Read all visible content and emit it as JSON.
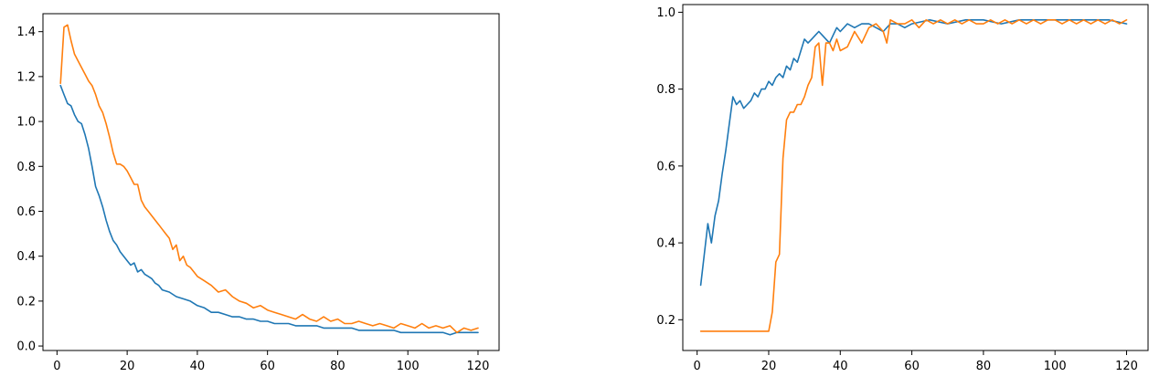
{
  "chart_data": [
    {
      "type": "line",
      "title": "",
      "xlabel": "",
      "ylabel": "",
      "xlim": [
        -4,
        126
      ],
      "ylim": [
        -0.02,
        1.48
      ],
      "xticks": [
        0,
        20,
        40,
        60,
        80,
        100,
        120
      ],
      "xtick_labels": [
        "0",
        "20",
        "40",
        "60",
        "80",
        "100",
        "120"
      ],
      "yticks": [
        0.0,
        0.2,
        0.4,
        0.6,
        0.8,
        1.0,
        1.2,
        1.4
      ],
      "ytick_labels": [
        "0.0",
        "0.2",
        "0.4",
        "0.6",
        "0.8",
        "1.0",
        "1.2",
        "1.4"
      ],
      "grid": false,
      "legend": "none",
      "series": [
        {
          "color": "#1f77b4",
          "x": [
            1,
            2,
            3,
            4,
            5,
            6,
            7,
            8,
            9,
            10,
            11,
            12,
            13,
            14,
            15,
            16,
            17,
            18,
            19,
            20,
            21,
            22,
            23,
            24,
            25,
            26,
            27,
            28,
            29,
            30,
            32,
            34,
            36,
            38,
            40,
            42,
            44,
            46,
            48,
            50,
            52,
            54,
            56,
            58,
            60,
            62,
            64,
            66,
            68,
            70,
            72,
            74,
            76,
            78,
            80,
            82,
            84,
            86,
            88,
            90,
            92,
            94,
            96,
            98,
            100,
            102,
            104,
            106,
            108,
            110,
            112,
            114,
            116,
            118,
            120
          ],
          "y": [
            1.16,
            1.12,
            1.08,
            1.07,
            1.03,
            1.0,
            0.99,
            0.94,
            0.88,
            0.8,
            0.71,
            0.67,
            0.62,
            0.56,
            0.51,
            0.47,
            0.45,
            0.42,
            0.4,
            0.38,
            0.36,
            0.37,
            0.33,
            0.34,
            0.32,
            0.31,
            0.3,
            0.28,
            0.27,
            0.25,
            0.24,
            0.22,
            0.21,
            0.2,
            0.18,
            0.17,
            0.15,
            0.15,
            0.14,
            0.13,
            0.13,
            0.12,
            0.12,
            0.11,
            0.11,
            0.1,
            0.1,
            0.1,
            0.09,
            0.09,
            0.09,
            0.09,
            0.08,
            0.08,
            0.08,
            0.08,
            0.08,
            0.07,
            0.07,
            0.07,
            0.07,
            0.07,
            0.07,
            0.06,
            0.06,
            0.06,
            0.06,
            0.06,
            0.06,
            0.06,
            0.05,
            0.06,
            0.06,
            0.06,
            0.06
          ]
        },
        {
          "color": "#ff7f0e",
          "x": [
            1,
            2,
            3,
            4,
            5,
            6,
            7,
            8,
            9,
            10,
            11,
            12,
            13,
            14,
            15,
            16,
            17,
            18,
            19,
            20,
            21,
            22,
            23,
            24,
            25,
            26,
            27,
            28,
            29,
            30,
            31,
            32,
            33,
            34,
            35,
            36,
            37,
            38,
            39,
            40,
            42,
            44,
            46,
            48,
            50,
            52,
            54,
            56,
            58,
            60,
            62,
            64,
            66,
            68,
            70,
            72,
            74,
            76,
            78,
            80,
            82,
            84,
            86,
            88,
            90,
            92,
            94,
            96,
            98,
            100,
            102,
            104,
            106,
            108,
            110,
            112,
            114,
            116,
            118,
            120
          ],
          "y": [
            1.17,
            1.42,
            1.43,
            1.36,
            1.3,
            1.27,
            1.24,
            1.21,
            1.18,
            1.16,
            1.12,
            1.07,
            1.04,
            0.99,
            0.93,
            0.86,
            0.81,
            0.81,
            0.8,
            0.78,
            0.75,
            0.72,
            0.72,
            0.65,
            0.62,
            0.6,
            0.58,
            0.56,
            0.54,
            0.52,
            0.5,
            0.48,
            0.43,
            0.45,
            0.38,
            0.4,
            0.36,
            0.35,
            0.33,
            0.31,
            0.29,
            0.27,
            0.24,
            0.25,
            0.22,
            0.2,
            0.19,
            0.17,
            0.18,
            0.16,
            0.15,
            0.14,
            0.13,
            0.12,
            0.14,
            0.12,
            0.11,
            0.13,
            0.11,
            0.12,
            0.1,
            0.1,
            0.11,
            0.1,
            0.09,
            0.1,
            0.09,
            0.08,
            0.1,
            0.09,
            0.08,
            0.1,
            0.08,
            0.09,
            0.08,
            0.09,
            0.06,
            0.08,
            0.07,
            0.08
          ]
        }
      ]
    },
    {
      "type": "line",
      "title": "",
      "xlabel": "",
      "ylabel": "",
      "xlim": [
        -4,
        126
      ],
      "ylim": [
        0.12,
        1.02
      ],
      "xticks": [
        0,
        20,
        40,
        60,
        80,
        100,
        120
      ],
      "xtick_labels": [
        "0",
        "20",
        "40",
        "60",
        "80",
        "100",
        "120"
      ],
      "yticks": [
        0.2,
        0.4,
        0.6,
        0.8,
        1.0
      ],
      "ytick_labels": [
        "0.2",
        "0.4",
        "0.6",
        "0.8",
        "1.0"
      ],
      "grid": false,
      "legend": "none",
      "series": [
        {
          "color": "#1f77b4",
          "x": [
            1,
            2,
            3,
            4,
            5,
            6,
            7,
            8,
            9,
            10,
            11,
            12,
            13,
            14,
            15,
            16,
            17,
            18,
            19,
            20,
            21,
            22,
            23,
            24,
            25,
            26,
            27,
            28,
            29,
            30,
            31,
            32,
            33,
            34,
            35,
            36,
            37,
            38,
            39,
            40,
            42,
            44,
            46,
            48,
            50,
            52,
            54,
            56,
            58,
            60,
            65,
            70,
            75,
            80,
            85,
            90,
            95,
            100,
            105,
            110,
            115,
            120
          ],
          "y": [
            0.29,
            0.37,
            0.45,
            0.4,
            0.47,
            0.51,
            0.58,
            0.64,
            0.71,
            0.78,
            0.76,
            0.77,
            0.75,
            0.76,
            0.77,
            0.79,
            0.78,
            0.8,
            0.8,
            0.82,
            0.81,
            0.83,
            0.84,
            0.83,
            0.86,
            0.85,
            0.88,
            0.87,
            0.9,
            0.93,
            0.92,
            0.93,
            0.94,
            0.95,
            0.94,
            0.93,
            0.92,
            0.94,
            0.96,
            0.95,
            0.97,
            0.96,
            0.97,
            0.97,
            0.96,
            0.95,
            0.97,
            0.97,
            0.96,
            0.97,
            0.98,
            0.97,
            0.98,
            0.98,
            0.97,
            0.98,
            0.98,
            0.98,
            0.98,
            0.98,
            0.98,
            0.97
          ]
        },
        {
          "color": "#ff7f0e",
          "x": [
            1,
            5,
            10,
            15,
            19,
            20,
            21,
            22,
            23,
            24,
            25,
            26,
            27,
            28,
            29,
            30,
            31,
            32,
            33,
            34,
            35,
            36,
            37,
            38,
            39,
            40,
            42,
            44,
            46,
            48,
            50,
            52,
            53,
            54,
            56,
            58,
            60,
            62,
            64,
            66,
            68,
            70,
            72,
            74,
            76,
            78,
            80,
            82,
            84,
            86,
            88,
            90,
            92,
            94,
            96,
            98,
            100,
            102,
            104,
            106,
            108,
            110,
            112,
            114,
            116,
            118,
            120
          ],
          "y": [
            0.17,
            0.17,
            0.17,
            0.17,
            0.17,
            0.17,
            0.22,
            0.35,
            0.37,
            0.62,
            0.72,
            0.74,
            0.74,
            0.76,
            0.76,
            0.78,
            0.81,
            0.83,
            0.91,
            0.92,
            0.81,
            0.92,
            0.92,
            0.9,
            0.93,
            0.9,
            0.91,
            0.95,
            0.92,
            0.96,
            0.97,
            0.95,
            0.92,
            0.98,
            0.97,
            0.97,
            0.98,
            0.96,
            0.98,
            0.97,
            0.98,
            0.97,
            0.98,
            0.97,
            0.98,
            0.97,
            0.97,
            0.98,
            0.97,
            0.98,
            0.97,
            0.98,
            0.97,
            0.98,
            0.97,
            0.98,
            0.98,
            0.97,
            0.98,
            0.97,
            0.98,
            0.97,
            0.98,
            0.97,
            0.98,
            0.97,
            0.98
          ]
        }
      ]
    }
  ]
}
